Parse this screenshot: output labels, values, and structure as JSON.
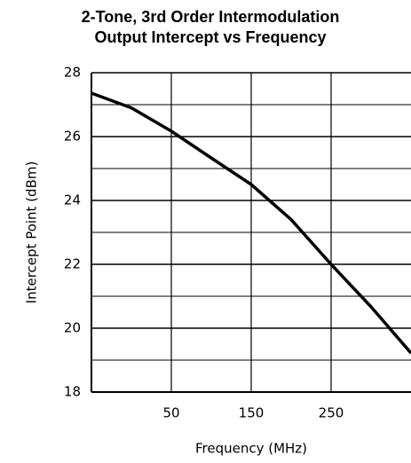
{
  "chart_data": {
    "type": "line",
    "title": [
      "2-Tone, 3rd Order Intermodulation",
      "Output Intercept vs Frequency"
    ],
    "x_label": "Frequency (MHz)",
    "y_label": "Intercept Point (dBm)",
    "x": [
      -50,
      0,
      50,
      100,
      150,
      200,
      250,
      300,
      350
    ],
    "series": [
      {
        "color": "#000000",
        "values": [
          27.36,
          26.9,
          26.17,
          25.33,
          24.5,
          23.4,
          22.0,
          20.67,
          19.22
        ]
      }
    ],
    "xlim": [
      -50,
      350
    ],
    "xticks": [
      50,
      150,
      250
    ],
    "ylim": [
      18,
      28
    ],
    "yticks": [
      18,
      20,
      22,
      24,
      26,
      28
    ],
    "yminor": [
      19,
      21,
      23,
      25,
      27
    ],
    "grid": true
  }
}
